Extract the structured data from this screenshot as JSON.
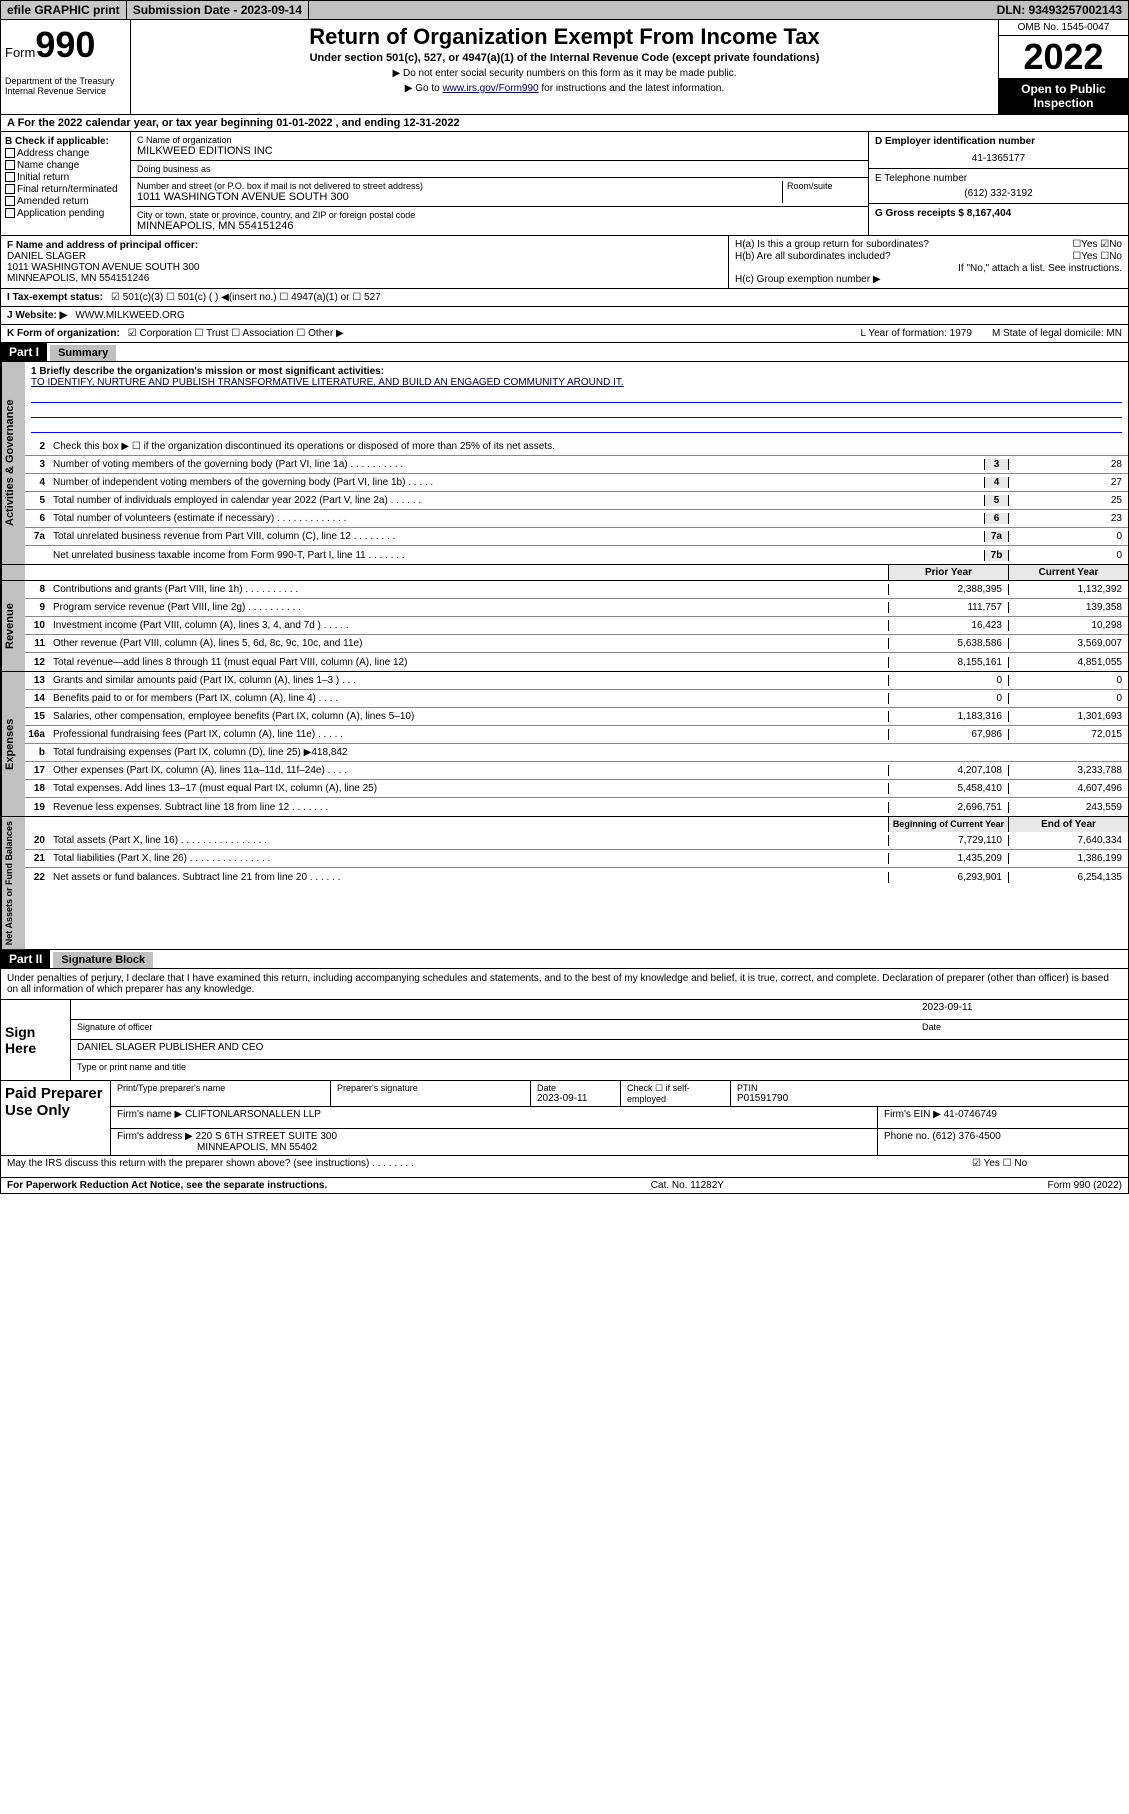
{
  "topbar": {
    "efile": "efile GRAPHIC print",
    "submission_label": "Submission Date - 2023-09-14",
    "dln": "DLN: 93493257002143"
  },
  "header": {
    "form_label": "Form",
    "form_number": "990",
    "dept": "Department of the Treasury Internal Revenue Service",
    "title": "Return of Organization Exempt From Income Tax",
    "subtitle": "Under section 501(c), 527, or 4947(a)(1) of the Internal Revenue Code (except private foundations)",
    "note1": "▶ Do not enter social security numbers on this form as it may be made public.",
    "note2_prefix": "▶ Go to ",
    "note2_link": "www.irs.gov/Form990",
    "note2_suffix": " for instructions and the latest information.",
    "omb": "OMB No. 1545-0047",
    "year": "2022",
    "inspection": "Open to Public Inspection"
  },
  "row_a": "A For the 2022 calendar year, or tax year beginning 01-01-2022   , and ending 12-31-2022",
  "col_b": {
    "header": "B Check if applicable:",
    "items": [
      "Address change",
      "Name change",
      "Initial return",
      "Final return/terminated",
      "Amended return",
      "Application pending"
    ]
  },
  "col_c": {
    "name_lbl": "C Name of organization",
    "name": "MILKWEED EDITIONS INC",
    "dba_lbl": "Doing business as",
    "dba": "",
    "addr_lbl": "Number and street (or P.O. box if mail is not delivered to street address)",
    "room_lbl": "Room/suite",
    "addr": "1011 WASHINGTON AVENUE SOUTH 300",
    "city_lbl": "City or town, state or province, country, and ZIP or foreign postal code",
    "city": "MINNEAPOLIS, MN  554151246"
  },
  "col_de": {
    "d_lbl": "D Employer identification number",
    "d_val": "41-1365177",
    "e_lbl": "E Telephone number",
    "e_val": "(612) 332-3192",
    "g_lbl": "G Gross receipts $ 8,167,404"
  },
  "col_f": {
    "lbl": "F Name and address of principal officer:",
    "name": "DANIEL SLAGER",
    "addr1": "1011 WASHINGTON AVENUE SOUTH 300",
    "addr2": "MINNEAPOLIS, MN  554151246"
  },
  "col_h": {
    "ha": "H(a)  Is this a group return for subordinates?",
    "ha_ans": "☐Yes ☑No",
    "hb": "H(b)  Are all subordinates included?",
    "hb_ans": "☐Yes ☐No",
    "hb_note": "If \"No,\" attach a list. See instructions.",
    "hc": "H(c)  Group exemption number ▶"
  },
  "row_i": {
    "lbl": "I   Tax-exempt status:",
    "opts": "☑ 501(c)(3)   ☐ 501(c) (  ) ◀(insert no.)   ☐ 4947(a)(1) or   ☐ 527"
  },
  "row_j": {
    "lbl": "J   Website: ▶",
    "val": "WWW.MILKWEED.ORG"
  },
  "row_k": {
    "lbl": "K Form of organization:",
    "opts": "☑ Corporation  ☐ Trust  ☐ Association  ☐ Other ▶",
    "l_lbl": "L Year of formation: 1979",
    "m_lbl": "M State of legal domicile: MN"
  },
  "part1": {
    "hdr": "Part I",
    "title": "Summary",
    "q1_lbl": "1  Briefly describe the organization's mission or most significant activities:",
    "q1_val": "TO IDENTIFY, NURTURE AND PUBLISH TRANSFORMATIVE LITERATURE, AND BUILD AN ENGAGED COMMUNITY AROUND IT.",
    "q2": "Check this box ▶ ☐  if the organization discontinued its operations or disposed of more than 25% of its net assets.",
    "governance": [
      {
        "n": "3",
        "d": "Number of voting members of the governing body (Part VI, line 1a)  .   .   .   .   .   .   .   .   .   .",
        "b": "3",
        "v": "28"
      },
      {
        "n": "4",
        "d": "Number of independent voting members of the governing body (Part VI, line 1b)  .   .   .   .   .",
        "b": "4",
        "v": "27"
      },
      {
        "n": "5",
        "d": "Total number of individuals employed in calendar year 2022 (Part V, line 2a)  .   .   .   .   .   .",
        "b": "5",
        "v": "25"
      },
      {
        "n": "6",
        "d": "Total number of volunteers (estimate if necessary)  .   .   .   .   .   .   .   .   .   .   .   .   .",
        "b": "6",
        "v": "23"
      },
      {
        "n": "7a",
        "d": "Total unrelated business revenue from Part VIII, column (C), line 12  .   .   .   .   .   .   .   .",
        "b": "7a",
        "v": "0"
      },
      {
        "n": "",
        "d": "Net unrelated business taxable income from Form 990-T, Part I, line 11  .   .   .   .   .   .   .",
        "b": "7b",
        "v": "0"
      }
    ],
    "col_hdr1": "Prior Year",
    "col_hdr2": "Current Year",
    "revenue": [
      {
        "n": "8",
        "d": "Contributions and grants (Part VIII, line 1h)  .   .   .   .   .   .   .   .   .   .",
        "p": "2,388,395",
        "c": "1,132,392"
      },
      {
        "n": "9",
        "d": "Program service revenue (Part VIII, line 2g)  .   .   .   .   .   .   .   .   .   .",
        "p": "111,757",
        "c": "139,358"
      },
      {
        "n": "10",
        "d": "Investment income (Part VIII, column (A), lines 3, 4, and 7d )  .   .   .   .   .",
        "p": "16,423",
        "c": "10,298"
      },
      {
        "n": "11",
        "d": "Other revenue (Part VIII, column (A), lines 5, 6d, 8c, 9c, 10c, and 11e)",
        "p": "5,638,586",
        "c": "3,569,007"
      },
      {
        "n": "12",
        "d": "Total revenue—add lines 8 through 11 (must equal Part VIII, column (A), line 12)",
        "p": "8,155,161",
        "c": "4,851,055"
      }
    ],
    "expenses": [
      {
        "n": "13",
        "d": "Grants and similar amounts paid (Part IX, column (A), lines 1–3 )  .   .   .",
        "p": "0",
        "c": "0"
      },
      {
        "n": "14",
        "d": "Benefits paid to or for members (Part IX, column (A), line 4)  .   .   .   .",
        "p": "0",
        "c": "0"
      },
      {
        "n": "15",
        "d": "Salaries, other compensation, employee benefits (Part IX, column (A), lines 5–10)",
        "p": "1,183,316",
        "c": "1,301,693"
      },
      {
        "n": "16a",
        "d": "Professional fundraising fees (Part IX, column (A), line 11e)  .   .   .   .   .",
        "p": "67,986",
        "c": "72,015"
      },
      {
        "n": "b",
        "d": "Total fundraising expenses (Part IX, column (D), line 25) ▶418,842",
        "p": "",
        "c": ""
      },
      {
        "n": "17",
        "d": "Other expenses (Part IX, column (A), lines 11a–11d, 11f–24e)  .   .   .   .",
        "p": "4,207,108",
        "c": "3,233,788"
      },
      {
        "n": "18",
        "d": "Total expenses. Add lines 13–17 (must equal Part IX, column (A), line 25)",
        "p": "5,458,410",
        "c": "4,607,496"
      },
      {
        "n": "19",
        "d": "Revenue less expenses. Subtract line 18 from line 12  .   .   .   .   .   .   .",
        "p": "2,696,751",
        "c": "243,559"
      }
    ],
    "net_hdr1": "Beginning of Current Year",
    "net_hdr2": "End of Year",
    "netassets": [
      {
        "n": "20",
        "d": "Total assets (Part X, line 16)  .   .   .   .   .   .   .   .   .   .   .   .   .   .   .   .",
        "p": "7,729,110",
        "c": "7,640,334"
      },
      {
        "n": "21",
        "d": "Total liabilities (Part X, line 26)  .   .   .   .   .   .   .   .   .   .   .   .   .   .   .",
        "p": "1,435,209",
        "c": "1,386,199"
      },
      {
        "n": "22",
        "d": "Net assets or fund balances. Subtract line 21 from line 20  .   .   .   .   .   .",
        "p": "6,293,901",
        "c": "6,254,135"
      }
    ]
  },
  "part2": {
    "hdr": "Part II",
    "title": "Signature Block",
    "decl": "Under penalties of perjury, I declare that I have examined this return, including accompanying schedules and statements, and to the best of my knowledge and belief, it is true, correct, and complete. Declaration of preparer (other than officer) is based on all information of which preparer has any knowledge.",
    "sign_here": "Sign Here",
    "sig_date": "2023-09-11",
    "sig_officer_lbl": "Signature of officer",
    "sig_date_lbl": "Date",
    "sig_name": "DANIEL SLAGER PUBLISHER AND CEO",
    "sig_name_lbl": "Type or print name and title",
    "paid": "Paid Preparer Use Only",
    "prep_name_lbl": "Print/Type preparer's name",
    "prep_sig_lbl": "Preparer's signature",
    "prep_date_lbl": "Date",
    "prep_date": "2023-09-11",
    "prep_check_lbl": "Check ☐ if self-employed",
    "ptin_lbl": "PTIN",
    "ptin": "P01591790",
    "firm_name_lbl": "Firm's name    ▶",
    "firm_name": "CLIFTONLARSONALLEN LLP",
    "firm_ein_lbl": "Firm's EIN ▶",
    "firm_ein": "41-0746749",
    "firm_addr_lbl": "Firm's address ▶",
    "firm_addr1": "220 S 6TH STREET SUITE 300",
    "firm_addr2": "MINNEAPOLIS, MN  55402",
    "firm_phone_lbl": "Phone no.",
    "firm_phone": "(612) 376-4500",
    "discuss": "May the IRS discuss this return with the preparer shown above? (see instructions)  .   .   .   .   .   .   .   .",
    "discuss_ans": "☑ Yes  ☐ No"
  },
  "footer": {
    "left": "For Paperwork Reduction Act Notice, see the separate instructions.",
    "mid": "Cat. No. 11282Y",
    "right": "Form 990 (2022)"
  },
  "colors": {
    "topbar_bg": "#c0c0c0",
    "black": "#000000",
    "green_check": "#00aa55",
    "link": "#000066"
  }
}
